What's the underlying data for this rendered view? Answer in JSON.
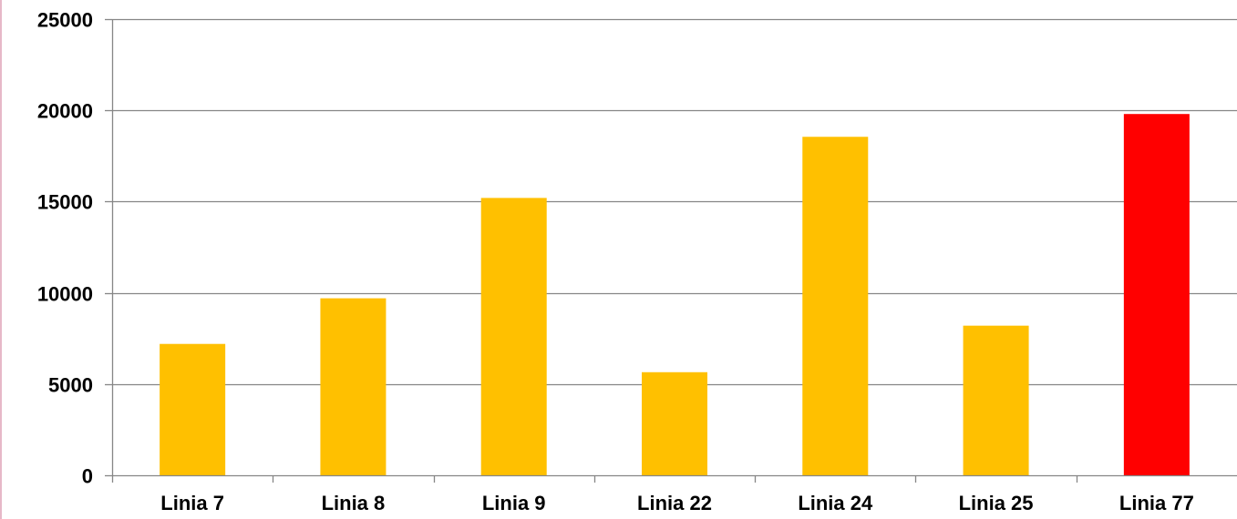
{
  "chart_data": {
    "type": "bar",
    "categories": [
      "Linia 7",
      "Linia 8",
      "Linia 9",
      "Linia 22",
      "Linia 24",
      "Linia 25",
      "Linia 77"
    ],
    "values": [
      7200,
      9700,
      15200,
      5650,
      18550,
      8200,
      19800
    ],
    "bar_colors": [
      "#FFC000",
      "#FFC000",
      "#FFC000",
      "#FFC000",
      "#FFC000",
      "#FFC000",
      "#FF0000"
    ],
    "y_ticks": [
      0,
      5000,
      10000,
      15000,
      20000,
      25000
    ],
    "ylim": [
      0,
      25000
    ],
    "grid": true,
    "gridline_color": "#868686",
    "axis_color": "#868686",
    "title": "",
    "xlabel": "",
    "ylabel": "",
    "legend": "none"
  }
}
